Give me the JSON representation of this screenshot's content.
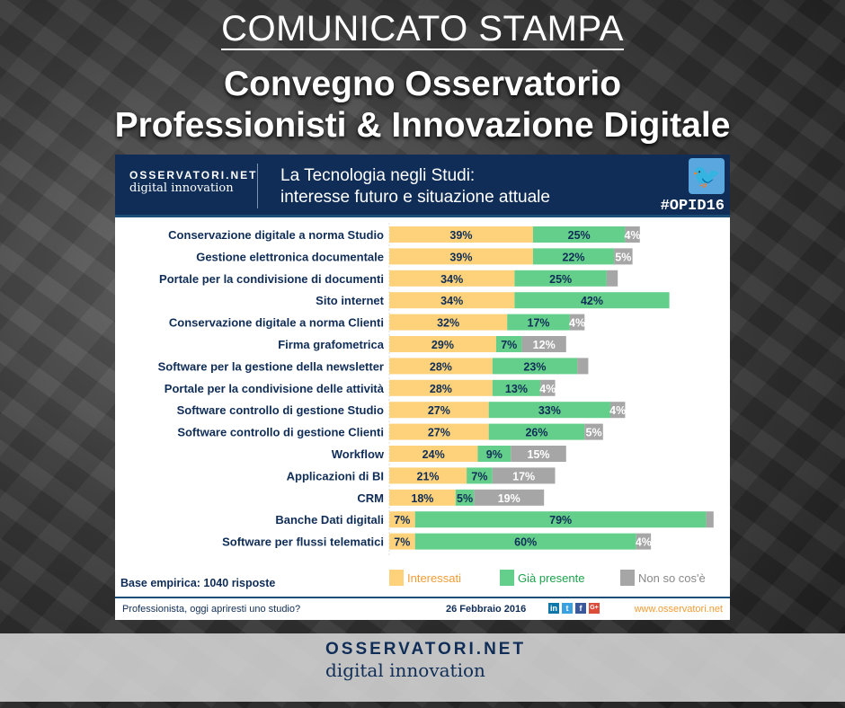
{
  "header": {
    "kicker": "COMUNICATO STAMPA",
    "title_line1": "Convegno Osservatorio",
    "title_line2": "Professionisti & Innovazione Digitale"
  },
  "panel": {
    "logo_top": "OSSERVATORI.NET",
    "logo_bottom": "digital innovation",
    "title_line1": "La Tecnologia negli Studi:",
    "title_line2": "interesse futuro e situazione attuale",
    "hashtag": "#OPID16",
    "twitter_icon": "twitter-bird-icon",
    "base": "Base empirica: 1040 risposte",
    "footer": {
      "question": "Professionista, oggi apriresti uno studio?",
      "date": "26 Febbraio 2016",
      "website": "www.osservatori.net",
      "social": [
        "in",
        "t",
        "f",
        "G+"
      ]
    }
  },
  "chart_data": {
    "type": "bar",
    "orientation": "horizontal",
    "stacked": true,
    "categories": [
      "Conservazione digitale a norma Studio",
      "Gestione elettronica documentale",
      "Portale per la condivisione di documenti",
      "Sito internet",
      "Conservazione digitale a norma Clienti",
      "Firma grafometrica",
      "Software per la gestione della newsletter",
      "Portale per la condivisione delle attività",
      "Software controllo di gestione Studio",
      "Software controllo di gestione Clienti",
      "Workflow",
      "Applicazioni di BI",
      "CRM",
      "Banche Dati digitali",
      "Software per flussi telematici"
    ],
    "series": [
      {
        "name": "Interessati",
        "color": "#fdd27a",
        "label_color": "#f39c34",
        "values": [
          39,
          39,
          34,
          34,
          32,
          29,
          28,
          28,
          27,
          27,
          24,
          21,
          18,
          7,
          7
        ]
      },
      {
        "name": "Già presente",
        "color": "#64cf8a",
        "label_color": "#1aa34a",
        "values": [
          25,
          22,
          25,
          42,
          17,
          7,
          23,
          13,
          33,
          26,
          9,
          7,
          5,
          79,
          60
        ]
      },
      {
        "name": "Non so cos'è",
        "color": "#a6a6a6",
        "label_color": "#888888",
        "values": [
          4,
          5,
          3,
          null,
          4,
          12,
          3,
          4,
          4,
          5,
          15,
          17,
          19,
          2,
          4
        ]
      }
    ],
    "data_labels": [
      [
        "39%",
        "25%",
        "4%"
      ],
      [
        "39%",
        "22%",
        "5%"
      ],
      [
        "34%",
        "25%",
        ""
      ],
      [
        "34%",
        "42%",
        ""
      ],
      [
        "32%",
        "17%",
        "4%"
      ],
      [
        "29%",
        "7%",
        "12%"
      ],
      [
        "28%",
        "23%",
        ""
      ],
      [
        "28%",
        "13%",
        "4%"
      ],
      [
        "27%",
        "33%",
        "4%"
      ],
      [
        "27%",
        "26%",
        "5%"
      ],
      [
        "24%",
        "9%",
        "15%"
      ],
      [
        "21%",
        "7%",
        "17%"
      ],
      [
        "18%",
        "5%",
        "19%"
      ],
      [
        "7%",
        "79%",
        ""
      ],
      [
        "7%",
        "60%",
        "4%"
      ]
    ],
    "legend": "bottom"
  },
  "bottom_logo": {
    "top": "OSSERVATORI.NET",
    "bottom": "digital innovation"
  }
}
